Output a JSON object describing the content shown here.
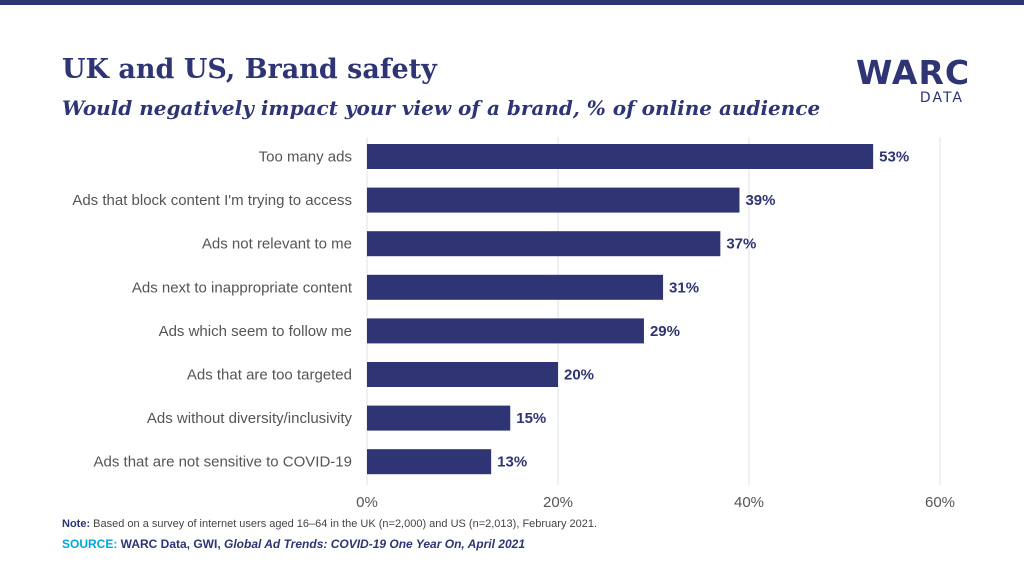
{
  "header": {
    "title": "UK and US, Brand safety",
    "subtitle": "Would negatively impact your view of a brand, % of online audience"
  },
  "logo": {
    "main": "WARC",
    "sub": "DATA"
  },
  "colors": {
    "bar": "#2e3474",
    "accent": "#00a6e0",
    "grid": "#dde0ea"
  },
  "chart_data": {
    "type": "bar",
    "orientation": "horizontal",
    "categories": [
      "Too many ads",
      "Ads that block content I'm trying to access",
      "Ads not relevant to me",
      "Ads next to inappropriate content",
      "Ads which seem to follow me",
      "Ads that are too targeted",
      "Ads without diversity/inclusivity",
      "Ads that are not sensitive to COVID-19"
    ],
    "values": [
      53,
      39,
      37,
      31,
      29,
      20,
      15,
      13
    ],
    "value_labels": [
      "53%",
      "39%",
      "37%",
      "31%",
      "29%",
      "20%",
      "15%",
      "13%"
    ],
    "xlim": [
      0,
      60
    ],
    "x_ticks": [
      0,
      20,
      40,
      60
    ],
    "x_tick_labels": [
      "0%",
      "20%",
      "40%",
      "60%"
    ],
    "grid": true
  },
  "footer": {
    "note_label": "Note:",
    "note_text": " Based on a survey of internet users aged 16–64 in the UK (n=2,000) and US (n=2,013), February 2021.",
    "source_label": "SOURCE:",
    "source_text": " WARC Data, GWI, ",
    "source_italic": "Global Ad Trends: COVID-19 One Year On, April 2021"
  }
}
